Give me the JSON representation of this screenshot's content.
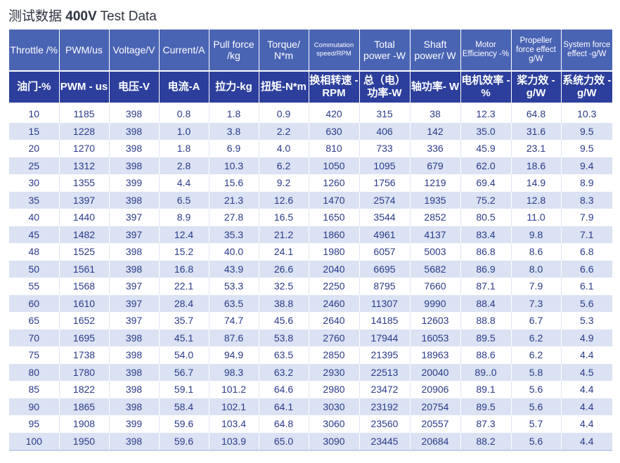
{
  "title": {
    "prefix": "测试数据",
    "voltage": "400V",
    "suffix": "Test Data"
  },
  "headers_en": [
    "Throttle /%",
    "PWM/us",
    "Voltage/V",
    "Current/A",
    "Pull force /kg",
    "Torque/ N*m",
    "Commutation speed/RPM",
    "Total power -W",
    "Shaft power/ W",
    "Motor Efficiency -%",
    "Propeller force effect g/W",
    "System force effect -g/W"
  ],
  "headers_cn": [
    "油门-%",
    "PWM - us",
    "电压-V",
    "电流-A",
    "拉力-kg",
    "扭矩-N*m",
    "换相转速 -RPM",
    "总（电） 功率-W",
    "轴功率- W",
    "电机效率 -%",
    "桨力效 -g/W",
    "系统力效 -g/W"
  ],
  "rows": [
    [
      "10",
      "1185",
      "398",
      "0.8",
      "1.8",
      "0.9",
      "420",
      "315",
      "38",
      "12.3",
      "64.8",
      "10.3"
    ],
    [
      "15",
      "1228",
      "398",
      "1.0",
      "3.8",
      "2.2",
      "630",
      "406",
      "142",
      "35.0",
      "31.6",
      "9.5"
    ],
    [
      "20",
      "1270",
      "398",
      "1.8",
      "6.9",
      "4.0",
      "810",
      "733",
      "336",
      "45.9",
      "23.1",
      "9.5"
    ],
    [
      "25",
      "1312",
      "398",
      "2.8",
      "10.3",
      "6.2",
      "1050",
      "1095",
      "679",
      "62.0",
      "18.6",
      "9.4"
    ],
    [
      "30",
      "1355",
      "399",
      "4.4",
      "15.6",
      "9.2",
      "1260",
      "1756",
      "1219",
      "69.4",
      "14.9",
      "8.9"
    ],
    [
      "35",
      "1397",
      "398",
      "6.5",
      "21.3",
      "12.6",
      "1470",
      "2574",
      "1935",
      "75.2",
      "12.8",
      "8.3"
    ],
    [
      "40",
      "1440",
      "397",
      "8.9",
      "27.8",
      "16.5",
      "1650",
      "3544",
      "2852",
      "80.5",
      "11.0",
      "7.9"
    ],
    [
      "45",
      "1482",
      "397",
      "12.4",
      "35.3",
      "21.2",
      "1860",
      "4961",
      "4137",
      "83.4",
      "9.8",
      "7.1"
    ],
    [
      "48",
      "1525",
      "398",
      "15.2",
      "40.0",
      "24.1",
      "1980",
      "6057",
      "5003",
      "86.8",
      "8.6",
      "6.8"
    ],
    [
      "50",
      "1561",
      "398",
      "16.8",
      "43.9",
      "26.6",
      "2040",
      "6695",
      "5682",
      "86.9",
      "8.0",
      "6.6"
    ],
    [
      "55",
      "1568",
      "397",
      "22.1",
      "53.3",
      "32.5",
      "2250",
      "8795",
      "7660",
      "87.1",
      "7.9",
      "6.1"
    ],
    [
      "60",
      "1610",
      "397",
      "28.4",
      "63.5",
      "38.8",
      "2460",
      "11307",
      "9990",
      "88.4",
      "7.3",
      "5.6"
    ],
    [
      "65",
      "1652",
      "397",
      "35.7",
      "74.7",
      "45.6",
      "2640",
      "14185",
      "12603",
      "88.8",
      "6.7",
      "5.3"
    ],
    [
      "70",
      "1695",
      "398",
      "45.1",
      "87.6",
      "53.8",
      "2760",
      "17944",
      "16053",
      "89.5",
      "6.2",
      "4.9"
    ],
    [
      "75",
      "1738",
      "398",
      "54.0",
      "94.9",
      "63.5",
      "2850",
      "21395",
      "18963",
      "88.6",
      "6.2",
      "4.4"
    ],
    [
      "80",
      "1780",
      "398",
      "56.7",
      "98.3",
      "63.2",
      "2930",
      "22513",
      "20040",
      "89..0",
      "5.8",
      "4.5"
    ],
    [
      "85",
      "1822",
      "398",
      "59.1",
      "101.2",
      "64.6",
      "2980",
      "23472",
      "20906",
      "89.1",
      "5.6",
      "4.4"
    ],
    [
      "90",
      "1865",
      "398",
      "58.4",
      "102.1",
      "64.1",
      "3030",
      "23192",
      "20754",
      "89.5",
      "5.6",
      "4.4"
    ],
    [
      "95",
      "1908",
      "399",
      "59.6",
      "103.4",
      "64.8",
      "3060",
      "23560",
      "20557",
      "87.3",
      "5.7",
      "4.4"
    ],
    [
      "100",
      "1950",
      "398",
      "59.6",
      "103.9",
      "65.0",
      "3090",
      "23445",
      "20684",
      "88.2",
      "5.6",
      "4.4"
    ]
  ],
  "colors": {
    "header_en_bg": "#4a64b4",
    "header_cn_bg": "#2d3f9c",
    "stripe_bg": "#dae2f3",
    "cell_text": "#2a3a8a"
  }
}
